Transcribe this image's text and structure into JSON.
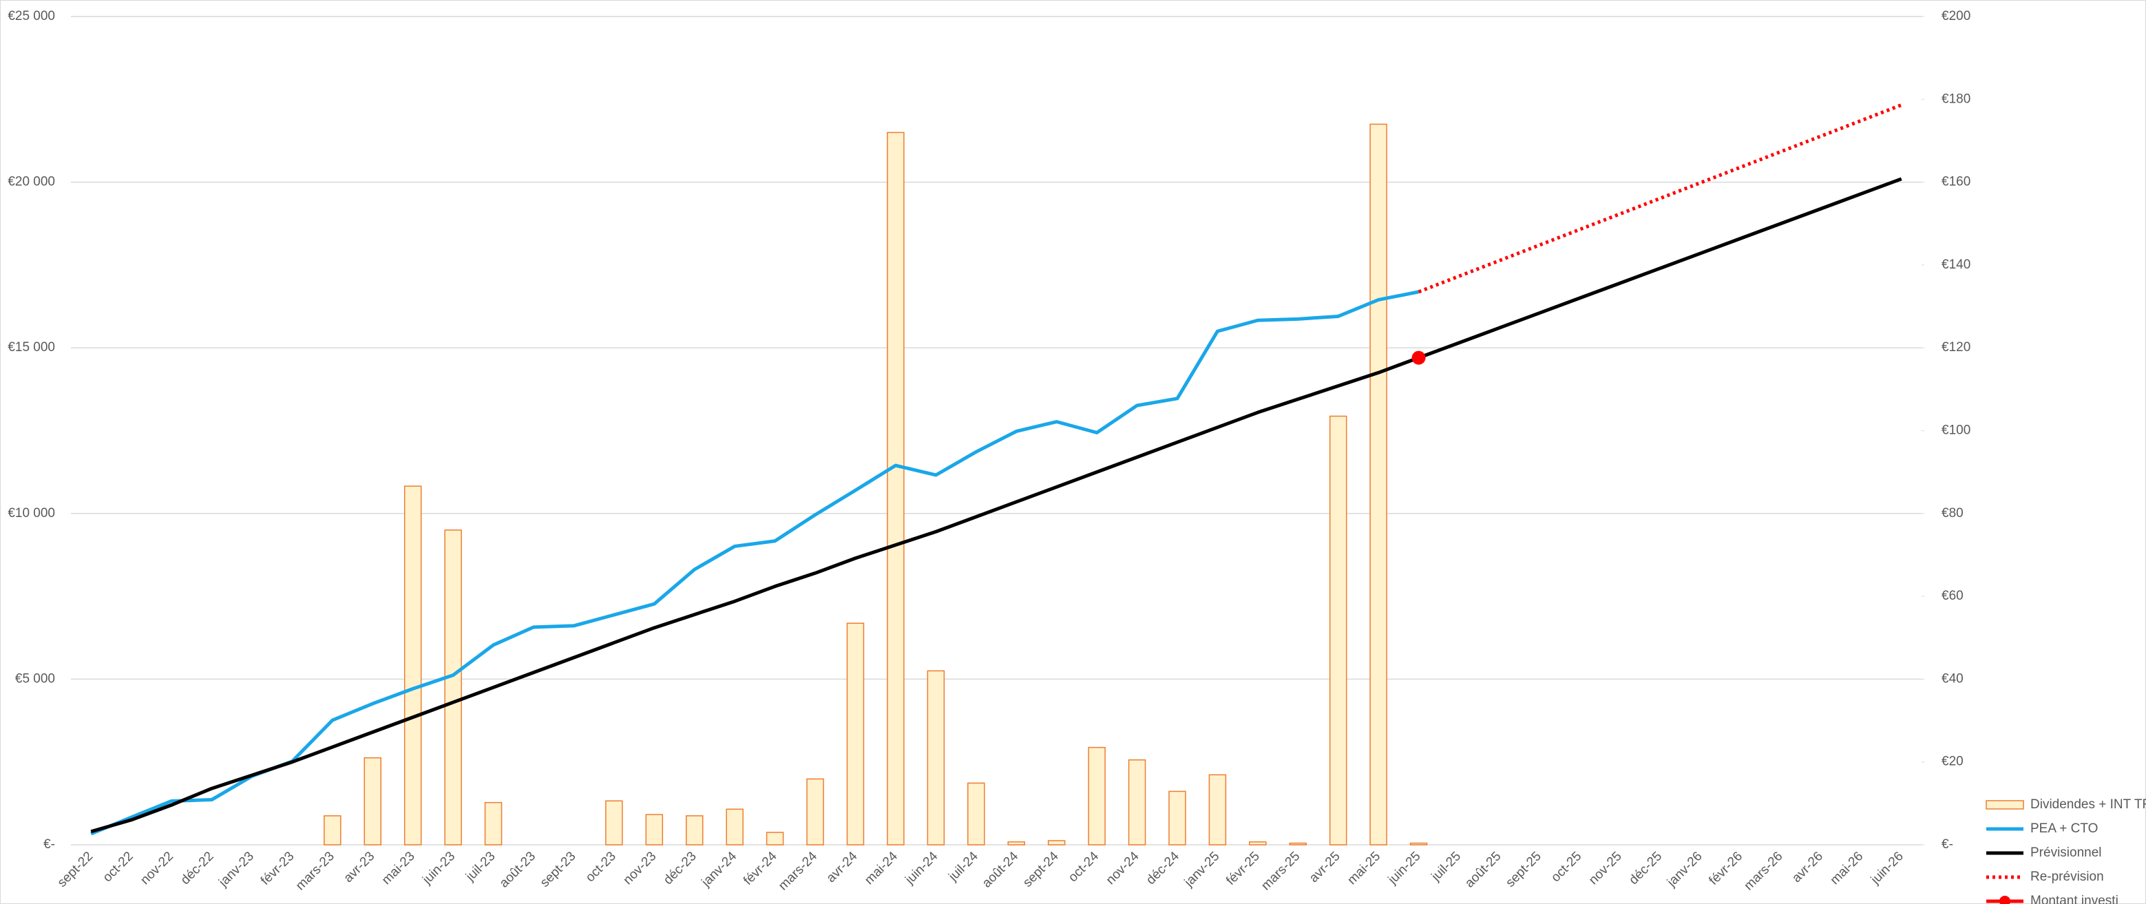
{
  "chart_data": {
    "type": "combo",
    "categories": [
      "sept-22",
      "oct-22",
      "nov-22",
      "déc-22",
      "janv-23",
      "févr-23",
      "mars-23",
      "avr-23",
      "mai-23",
      "juin-23",
      "juil-23",
      "août-23",
      "sept-23",
      "oct-23",
      "nov-23",
      "déc-23",
      "janv-24",
      "févr-24",
      "mars-24",
      "avr-24",
      "mai-24",
      "juin-24",
      "juil-24",
      "août-24",
      "sept-24",
      "oct-24",
      "nov-24",
      "déc-24",
      "janv-25",
      "févr-25",
      "mars-25",
      "avr-25",
      "mai-25",
      "juin-25",
      "juil-25",
      "août-25",
      "sept-25",
      "oct-25",
      "nov-25",
      "déc-25",
      "janv-26",
      "févr-26",
      "mars-26",
      "avr-26",
      "mai-26",
      "juin-26"
    ],
    "ylim": [
      0,
      25000
    ],
    "yticks": [
      {
        "value": 0,
        "label": "€-"
      },
      {
        "value": 5000,
        "label": "€5 000"
      },
      {
        "value": 10000,
        "label": "€10 000"
      },
      {
        "value": 15000,
        "label": "€15 000"
      },
      {
        "value": 20000,
        "label": "€20 000"
      },
      {
        "value": 25000,
        "label": "€25 000"
      }
    ],
    "y2lim": [
      0,
      200
    ],
    "y2ticks": [
      {
        "value": 0,
        "label": "€-"
      },
      {
        "value": 20,
        "label": "€20"
      },
      {
        "value": 40,
        "label": "€40"
      },
      {
        "value": 60,
        "label": "€60"
      },
      {
        "value": 80,
        "label": "€80"
      },
      {
        "value": 100,
        "label": "€100"
      },
      {
        "value": 120,
        "label": "€120"
      },
      {
        "value": 140,
        "label": "€140"
      },
      {
        "value": 160,
        "label": "€160"
      },
      {
        "value": 180,
        "label": "€180"
      },
      {
        "value": 200,
        "label": "€200"
      }
    ],
    "grid": true,
    "legend": "right",
    "series": [
      {
        "name": "Dividendes + INT TR",
        "type": "bar",
        "axis": "y2",
        "color": "#fff2cc",
        "edge": "#ed7d31",
        "values": [
          null,
          null,
          null,
          null,
          null,
          null,
          7,
          21,
          86.6,
          76,
          10.2,
          null,
          null,
          10.6,
          7.3,
          7,
          8.6,
          3,
          15.9,
          53.5,
          172,
          42,
          14.9,
          0.7,
          1,
          23.5,
          20.5,
          12.9,
          16.9,
          0.7,
          0.4,
          103.5,
          174,
          0.4,
          null,
          null,
          null,
          null,
          null,
          null,
          null,
          null,
          null,
          null,
          null,
          null
        ]
      },
      {
        "name": "PEA + CTO",
        "type": "line",
        "color": "#1aa7e8",
        "values": [
          330,
          830,
          1320,
          1360,
          2070,
          2520,
          3760,
          4260,
          4710,
          5120,
          6030,
          6570,
          6610,
          6940,
          7270,
          8310,
          9010,
          9170,
          9960,
          10700,
          11450,
          11160,
          11860,
          12480,
          12770,
          12440,
          13260,
          13470,
          15500,
          15830,
          15870,
          15950,
          16450,
          16690,
          null,
          null,
          null,
          null,
          null,
          null,
          null,
          null,
          null,
          null,
          null,
          null
        ]
      },
      {
        "name": "Prévisionnel",
        "type": "line",
        "color": "#000000",
        "values": [
          400,
          750,
          1200,
          1700,
          2100,
          2500,
          2950,
          3400,
          3850,
          4300,
          4750,
          5200,
          5650,
          6100,
          6550,
          6950,
          7350,
          7800,
          8200,
          8650,
          9050,
          9450,
          9900,
          10350,
          10800,
          11250,
          11700,
          12150,
          12600,
          13050,
          13450,
          13850,
          14250,
          14700,
          15150,
          15600,
          16050,
          16500,
          16950,
          17400,
          17850,
          18300,
          18750,
          19200,
          19650,
          20100
        ]
      },
      {
        "name": "Re-prévision",
        "type": "line",
        "dashed": true,
        "color": "#ff0000",
        "values": [
          null,
          null,
          null,
          null,
          null,
          null,
          null,
          null,
          null,
          null,
          null,
          null,
          null,
          null,
          null,
          null,
          null,
          null,
          null,
          null,
          null,
          null,
          null,
          null,
          null,
          null,
          null,
          null,
          null,
          null,
          null,
          null,
          null,
          16690,
          17160,
          17630,
          18100,
          18570,
          19040,
          19510,
          19980,
          20450,
          20920,
          21390,
          21860,
          22330
        ]
      },
      {
        "name": "Montant investi",
        "type": "line",
        "marker": true,
        "color": "#ff0000",
        "values": [
          null,
          null,
          null,
          null,
          null,
          null,
          null,
          null,
          null,
          null,
          null,
          null,
          null,
          null,
          null,
          null,
          null,
          null,
          null,
          null,
          null,
          null,
          null,
          null,
          null,
          null,
          null,
          null,
          null,
          null,
          null,
          null,
          null,
          14700,
          null,
          null,
          null,
          null,
          null,
          null,
          null,
          null,
          null,
          null,
          null,
          null
        ]
      }
    ]
  }
}
